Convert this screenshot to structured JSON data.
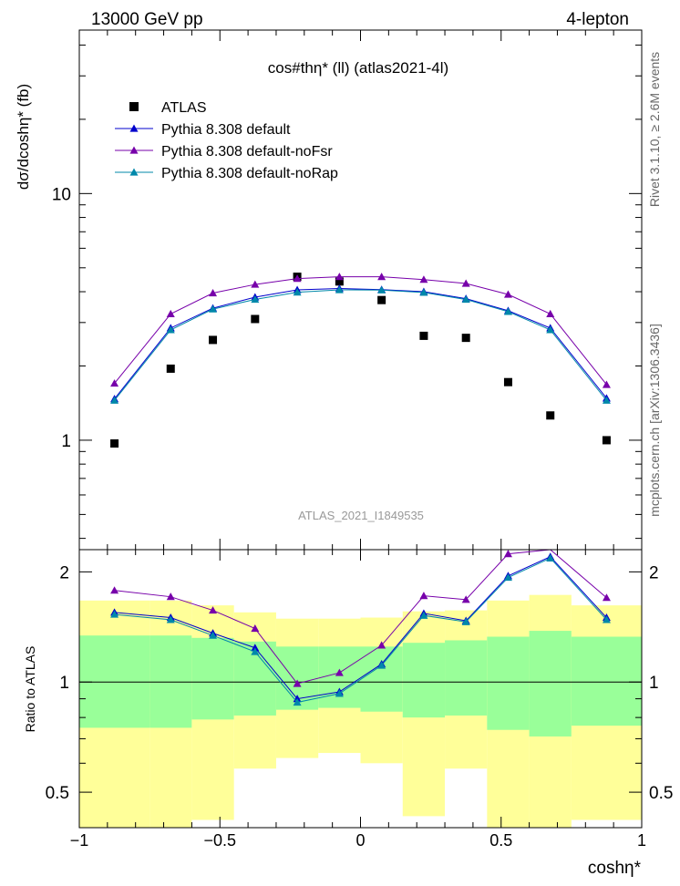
{
  "header": {
    "left": "13000 GeV pp",
    "right": "4-lepton",
    "side_rivet": "Rivet 3.1.10, ≥ 2.6M events",
    "side_mcplots": "mcplots.cern.ch [arXiv:1306.3436]"
  },
  "chart_data": {
    "type": "scatter",
    "title": "cos#thη* (ll) (atlas2021-4l)",
    "watermark": "ATLAS_2021_I1849535",
    "xlabel": "coshη*",
    "ylabel": "dσ/dcoshη* (fb)",
    "ratio_ylabel": "Ratio to ATLAS",
    "x": [
      -0.875,
      -0.675,
      -0.525,
      -0.375,
      -0.225,
      -0.075,
      0.075,
      0.225,
      0.375,
      0.525,
      0.675,
      0.875
    ],
    "xlim": [
      -1.0,
      1.0
    ],
    "xticks": [
      "−1",
      "−0.5",
      "0",
      "0.5",
      "1"
    ],
    "ylim": [
      0.36,
      46
    ],
    "ylog": true,
    "yticks": [
      "1",
      "10"
    ],
    "ratio_ylim": [
      0.4,
      2.3
    ],
    "ratio_yticks": [
      "0.5",
      "1",
      "2"
    ],
    "legend_position": "top-left",
    "series": [
      {
        "name": "ATLAS",
        "color": "#000000",
        "marker": "square",
        "values": [
          0.97,
          1.95,
          2.55,
          3.1,
          4.6,
          4.4,
          3.7,
          2.65,
          2.6,
          1.72,
          1.26,
          1.0
        ]
      },
      {
        "name": "Pythia 8.308 default",
        "color": "#0000cc",
        "marker": "triangle",
        "values": [
          1.47,
          2.85,
          3.43,
          3.8,
          4.07,
          4.12,
          4.08,
          4.0,
          3.75,
          3.35,
          2.85,
          1.48
        ]
      },
      {
        "name": "Pythia 8.308 default-noFsr",
        "color": "#7700aa",
        "marker": "triangle",
        "values": [
          1.7,
          3.25,
          3.95,
          4.28,
          4.52,
          4.6,
          4.6,
          4.48,
          4.32,
          3.9,
          3.25,
          1.68
        ]
      },
      {
        "name": "Pythia 8.308 default-noRap",
        "color": "#0088aa",
        "marker": "triangle",
        "values": [
          1.45,
          2.8,
          3.4,
          3.72,
          3.98,
          4.07,
          4.06,
          3.97,
          3.72,
          3.32,
          2.8,
          1.45
        ]
      }
    ],
    "ratio_series": [
      {
        "name": "Pythia 8.308 default",
        "values": [
          1.55,
          1.5,
          1.36,
          1.24,
          0.9,
          0.94,
          1.12,
          1.54,
          1.47,
          1.95,
          2.2,
          1.5
        ]
      },
      {
        "name": "Pythia 8.308 default-noFsr",
        "values": [
          1.78,
          1.71,
          1.57,
          1.4,
          0.99,
          1.06,
          1.26,
          1.72,
          1.68,
          2.24,
          2.45,
          1.7
        ]
      },
      {
        "name": "Pythia 8.308 default-noRap",
        "values": [
          1.53,
          1.48,
          1.34,
          1.21,
          0.88,
          0.93,
          1.11,
          1.52,
          1.46,
          1.93,
          2.18,
          1.48
        ]
      }
    ],
    "ratio_bands": {
      "edges": [
        -1.0,
        -0.75,
        -0.6,
        -0.45,
        -0.3,
        -0.15,
        0.0,
        0.15,
        0.3,
        0.45,
        0.6,
        0.75,
        1.0
      ],
      "inner_lo": [
        0.75,
        0.75,
        0.79,
        0.81,
        0.84,
        0.85,
        0.83,
        0.8,
        0.81,
        0.74,
        0.71,
        0.76
      ],
      "inner_hi": [
        1.34,
        1.34,
        1.32,
        1.29,
        1.25,
        1.25,
        1.25,
        1.28,
        1.3,
        1.33,
        1.38,
        1.33
      ],
      "outer_lo": [
        0.36,
        0.36,
        0.42,
        0.58,
        0.62,
        0.64,
        0.6,
        0.43,
        0.58,
        0.37,
        0.37,
        0.42
      ],
      "outer_hi": [
        1.67,
        1.67,
        1.62,
        1.55,
        1.49,
        1.49,
        1.5,
        1.56,
        1.57,
        1.67,
        1.73,
        1.62
      ],
      "inner_color": "#99ff99",
      "outer_color": "#ffff99"
    }
  }
}
